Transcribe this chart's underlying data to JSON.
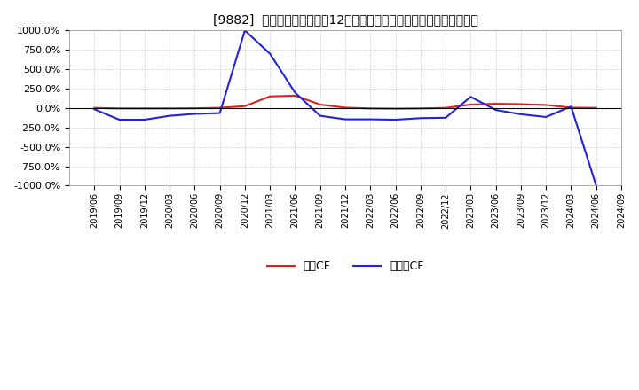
{
  "title": "[9882]  キャッシュフローの12か月移動合計の対前年同期増減率の推移",
  "ylim": [
    -1000,
    1000
  ],
  "yticks": [
    -1000,
    -750,
    -500,
    -250,
    0,
    250,
    500,
    750,
    1000
  ],
  "background_color": "#ffffff",
  "plot_bg_color": "#ffffff",
  "grid_color": "#aaaaaa",
  "legend_labels": [
    "営業CF",
    "フリーCF"
  ],
  "line_colors": [
    "#dd2222",
    "#2222dd"
  ],
  "dates": [
    "2019/06",
    "2019/09",
    "2019/12",
    "2020/03",
    "2020/06",
    "2020/09",
    "2020/12",
    "2021/03",
    "2021/06",
    "2021/09",
    "2021/12",
    "2022/03",
    "2022/06",
    "2022/09",
    "2022/12",
    "2023/03",
    "2023/06",
    "2023/09",
    "2023/12",
    "2024/03",
    "2024/06",
    "2024/09"
  ],
  "eigyo_cf": [
    2.0,
    -5.0,
    -5.0,
    -5.0,
    -3.0,
    3.0,
    25.0,
    150.0,
    160.0,
    45.0,
    5.0,
    -5.0,
    -8.0,
    -5.0,
    2.0,
    45.0,
    55.0,
    50.0,
    40.0,
    5.0,
    2.0,
    null
  ],
  "free_cf": [
    -15.0,
    -150.0,
    -150.0,
    -100.0,
    -75.0,
    -65.0,
    1000.0,
    700.0,
    200.0,
    -100.0,
    -145.0,
    -145.0,
    -150.0,
    -130.0,
    -125.0,
    145.0,
    -25.0,
    -80.0,
    -115.0,
    20.0,
    -1000.0,
    null
  ]
}
